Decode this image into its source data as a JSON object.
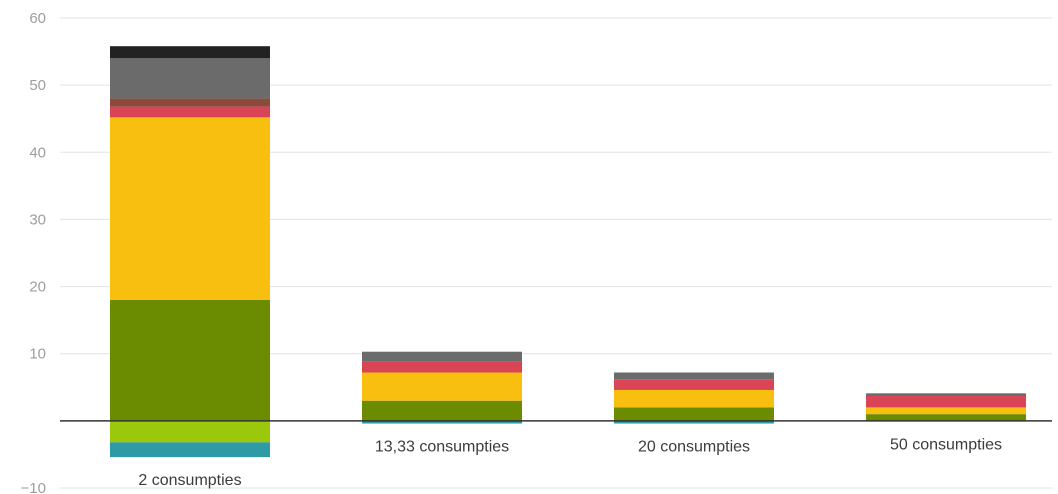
{
  "chart_data": {
    "type": "bar",
    "stacked": true,
    "categories": [
      "2 consumpties",
      "13,33 consumpties",
      "20 consumpties",
      "50 consumpties"
    ],
    "ylim": [
      -10,
      60
    ],
    "yticks": [
      -10,
      0,
      10,
      20,
      30,
      40,
      50,
      60
    ],
    "y_tick_labels": [
      "−10",
      "",
      "10",
      "20",
      "30",
      "40",
      "50",
      "60"
    ],
    "grid": true,
    "legend": "none",
    "title": "",
    "xlabel": "",
    "ylabel": "",
    "positive_series": [
      {
        "color": "#6b8b00",
        "values": [
          18,
          3,
          2,
          1
        ]
      },
      {
        "color": "#f9bf10",
        "values": [
          27.2,
          4.2,
          2.6,
          1.0
        ]
      },
      {
        "color": "#d94457",
        "values": [
          1.6,
          1.7,
          1.6,
          1.7
        ]
      },
      {
        "color": "#8b4a3c",
        "values": [
          1.2,
          0,
          0,
          0
        ]
      },
      {
        "color": "#6b6b6b",
        "values": [
          6,
          1.4,
          1,
          0.4
        ]
      },
      {
        "color": "#222222",
        "values": [
          1.8,
          0,
          0,
          0
        ]
      }
    ],
    "negative_series": [
      {
        "color": "#9bc80a",
        "values": [
          -3.2,
          0,
          0,
          0
        ]
      },
      {
        "color": "#2e9aa6",
        "values": [
          -2.2,
          -0.4,
          -0.4,
          -0.1
        ]
      }
    ]
  }
}
